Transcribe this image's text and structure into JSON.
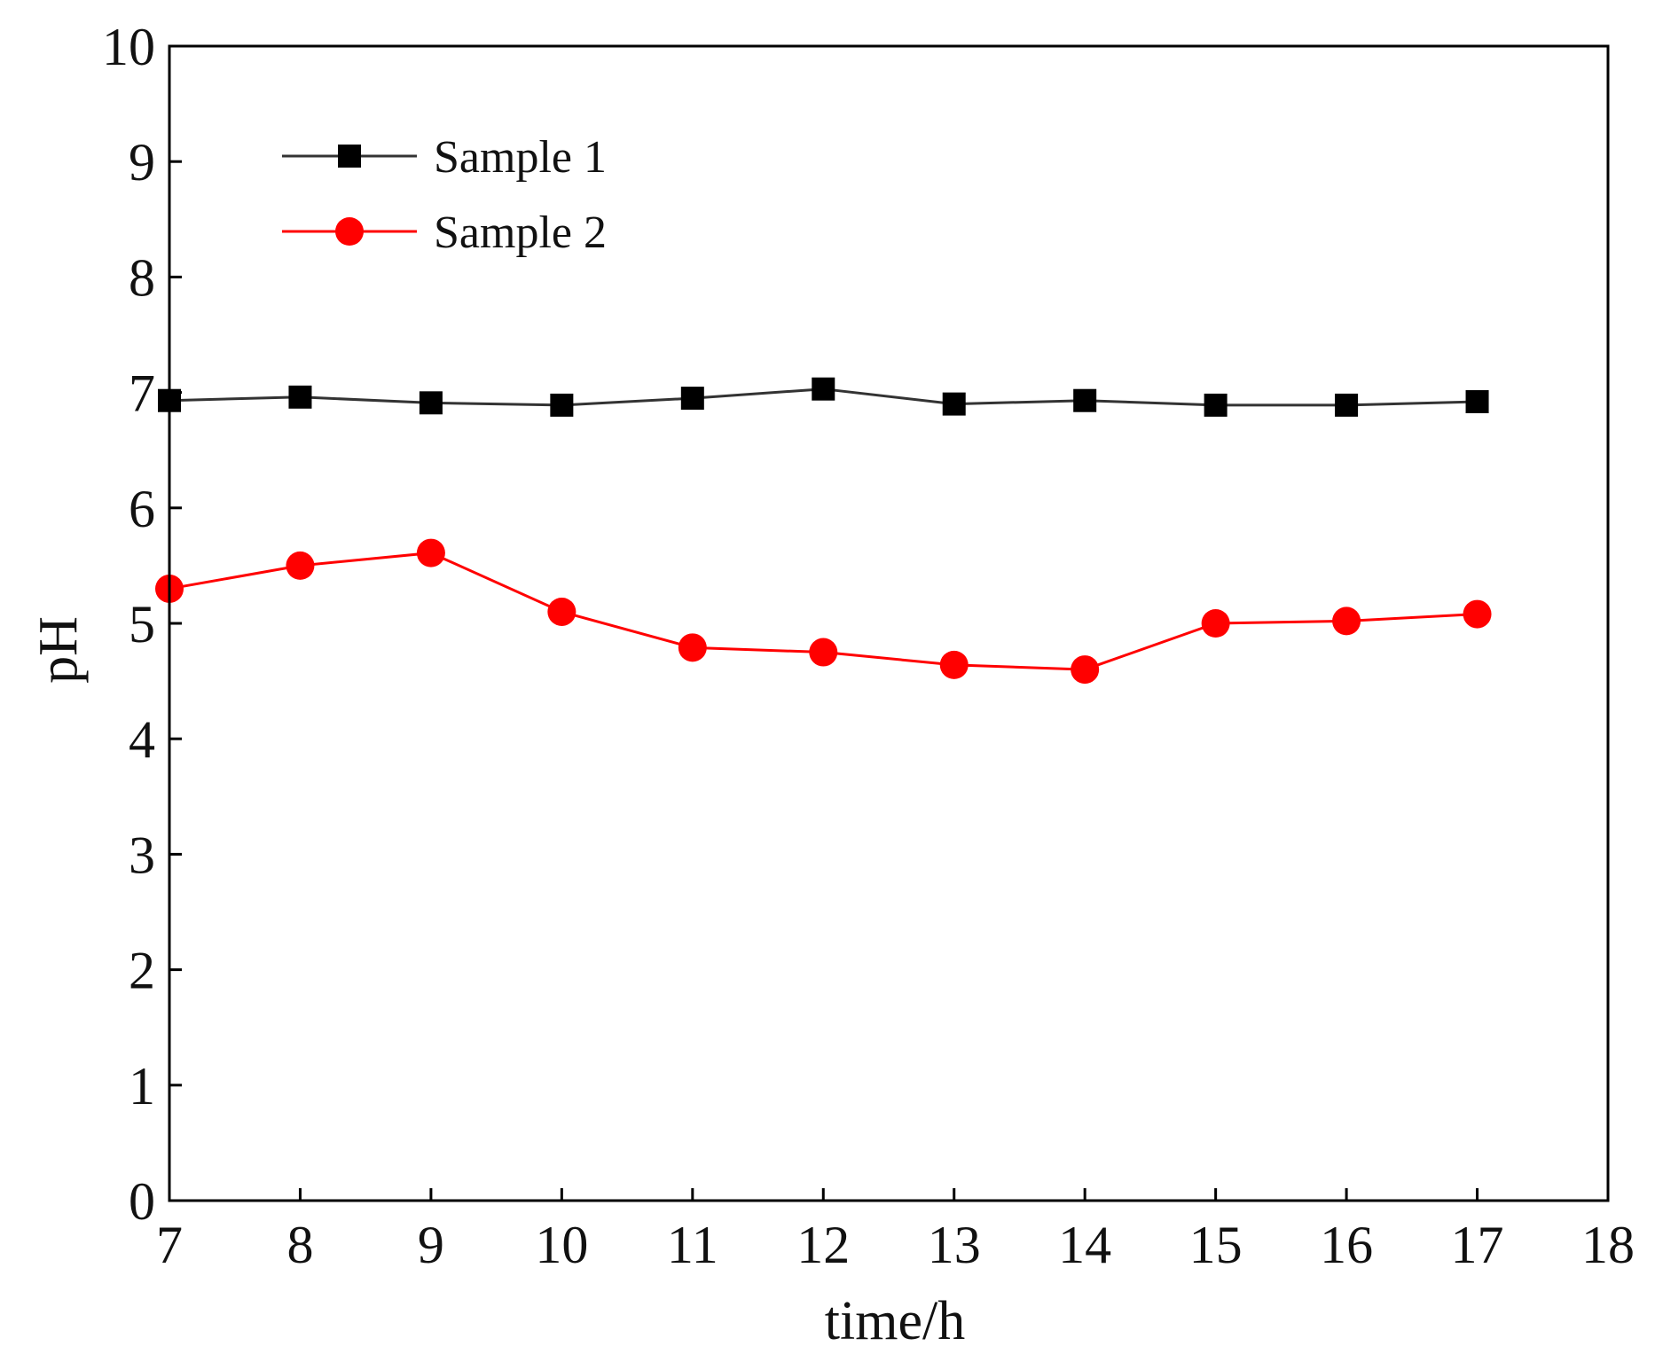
{
  "chart_data": {
    "type": "line",
    "title": "",
    "xlabel": "time/h",
    "ylabel": "pH",
    "xlim": [
      7,
      18
    ],
    "ylim": [
      0,
      10
    ],
    "xticks": [
      7,
      8,
      9,
      10,
      11,
      12,
      13,
      14,
      15,
      16,
      17,
      18
    ],
    "yticks": [
      0,
      1,
      2,
      3,
      4,
      5,
      6,
      7,
      8,
      9,
      10
    ],
    "x": [
      7,
      8,
      9,
      10,
      11,
      12,
      13,
      14,
      15,
      16,
      17
    ],
    "grid": false,
    "legend_position": "top-left",
    "series": [
      {
        "name": "Sample 1",
        "color": "#000000",
        "line_color": "#333333",
        "marker": "square",
        "values": [
          6.93,
          6.96,
          6.91,
          6.89,
          6.95,
          7.03,
          6.9,
          6.93,
          6.89,
          6.89,
          6.92
        ]
      },
      {
        "name": "Sample 2",
        "color": "#ff0000",
        "line_color": "#ff0000",
        "marker": "circle",
        "values": [
          5.3,
          5.5,
          5.61,
          5.1,
          4.79,
          4.75,
          4.64,
          4.6,
          5.0,
          5.02,
          5.08
        ]
      }
    ]
  }
}
